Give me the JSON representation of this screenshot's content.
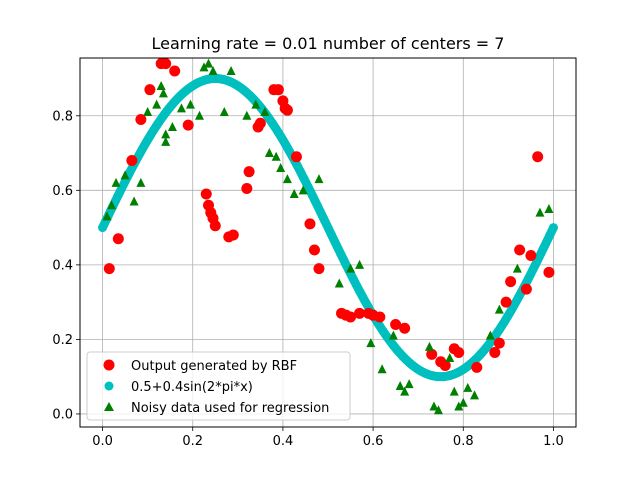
{
  "chart_data": {
    "type": "scatter",
    "title": "Learning rate = 0.01 number of centers = 7",
    "xlabel": "",
    "ylabel": "",
    "xlim": [
      -0.05,
      1.05
    ],
    "ylim": [
      -0.035,
      0.955
    ],
    "x_ticks": [
      0.0,
      0.2,
      0.4,
      0.6,
      0.8,
      1.0
    ],
    "x_tick_labels": [
      "0.0",
      "0.2",
      "0.4",
      "0.6",
      "0.8",
      "1.0"
    ],
    "y_ticks": [
      0.0,
      0.2,
      0.4,
      0.6,
      0.8
    ],
    "y_tick_labels": [
      "0.0",
      "0.2",
      "0.4",
      "0.6",
      "0.8"
    ],
    "grid": true,
    "legend_position": "lower-left",
    "series": [
      {
        "name": "Output generated by RBF",
        "marker": "circle",
        "color": "#ff0000",
        "points": [
          [
            0.015,
            0.39
          ],
          [
            0.035,
            0.47
          ],
          [
            0.065,
            0.68
          ],
          [
            0.085,
            0.79
          ],
          [
            0.105,
            0.87
          ],
          [
            0.13,
            0.94
          ],
          [
            0.14,
            0.94
          ],
          [
            0.16,
            0.92
          ],
          [
            0.19,
            0.775
          ],
          [
            0.23,
            0.59
          ],
          [
            0.235,
            0.56
          ],
          [
            0.24,
            0.54
          ],
          [
            0.245,
            0.525
          ],
          [
            0.25,
            0.505
          ],
          [
            0.28,
            0.475
          ],
          [
            0.29,
            0.48
          ],
          [
            0.32,
            0.605
          ],
          [
            0.325,
            0.65
          ],
          [
            0.345,
            0.77
          ],
          [
            0.35,
            0.78
          ],
          [
            0.38,
            0.87
          ],
          [
            0.39,
            0.87
          ],
          [
            0.4,
            0.84
          ],
          [
            0.405,
            0.82
          ],
          [
            0.41,
            0.815
          ],
          [
            0.43,
            0.69
          ],
          [
            0.46,
            0.51
          ],
          [
            0.47,
            0.44
          ],
          [
            0.48,
            0.39
          ],
          [
            0.53,
            0.27
          ],
          [
            0.54,
            0.265
          ],
          [
            0.55,
            0.26
          ],
          [
            0.57,
            0.27
          ],
          [
            0.59,
            0.27
          ],
          [
            0.6,
            0.265
          ],
          [
            0.615,
            0.26
          ],
          [
            0.65,
            0.24
          ],
          [
            0.67,
            0.23
          ],
          [
            0.73,
            0.16
          ],
          [
            0.75,
            0.14
          ],
          [
            0.76,
            0.13
          ],
          [
            0.78,
            0.175
          ],
          [
            0.79,
            0.165
          ],
          [
            0.83,
            0.125
          ],
          [
            0.87,
            0.165
          ],
          [
            0.88,
            0.19
          ],
          [
            0.895,
            0.3
          ],
          [
            0.905,
            0.355
          ],
          [
            0.925,
            0.44
          ],
          [
            0.94,
            0.335
          ],
          [
            0.95,
            0.425
          ],
          [
            0.965,
            0.69
          ],
          [
            0.99,
            0.38
          ]
        ]
      },
      {
        "name": "0.5+0.4sin(2*pi*x)",
        "marker": "circle",
        "color": "#00bfbf",
        "function": "0.5+0.4sin(2*pi*x)",
        "x_range": [
          0,
          1
        ]
      },
      {
        "name": "Noisy data used for regression",
        "marker": "triangle",
        "color": "#008000",
        "points": [
          [
            0.01,
            0.53
          ],
          [
            0.02,
            0.56
          ],
          [
            0.03,
            0.62
          ],
          [
            0.05,
            0.64
          ],
          [
            0.07,
            0.57
          ],
          [
            0.085,
            0.62
          ],
          [
            0.1,
            0.81
          ],
          [
            0.12,
            0.83
          ],
          [
            0.13,
            0.88
          ],
          [
            0.135,
            0.86
          ],
          [
            0.14,
            0.75
          ],
          [
            0.14,
            0.73
          ],
          [
            0.155,
            0.77
          ],
          [
            0.175,
            0.82
          ],
          [
            0.195,
            0.83
          ],
          [
            0.215,
            0.8
          ],
          [
            0.225,
            0.93
          ],
          [
            0.235,
            0.94
          ],
          [
            0.245,
            0.92
          ],
          [
            0.27,
            0.81
          ],
          [
            0.285,
            0.92
          ],
          [
            0.32,
            0.8
          ],
          [
            0.34,
            0.83
          ],
          [
            0.36,
            0.81
          ],
          [
            0.37,
            0.7
          ],
          [
            0.385,
            0.69
          ],
          [
            0.395,
            0.66
          ],
          [
            0.41,
            0.63
          ],
          [
            0.425,
            0.59
          ],
          [
            0.445,
            0.6
          ],
          [
            0.48,
            0.63
          ],
          [
            0.525,
            0.35
          ],
          [
            0.55,
            0.39
          ],
          [
            0.57,
            0.4
          ],
          [
            0.595,
            0.19
          ],
          [
            0.62,
            0.12
          ],
          [
            0.645,
            0.21
          ],
          [
            0.66,
            0.075
          ],
          [
            0.67,
            0.06
          ],
          [
            0.68,
            0.08
          ],
          [
            0.725,
            0.18
          ],
          [
            0.735,
            0.02
          ],
          [
            0.745,
            0.01
          ],
          [
            0.77,
            0.15
          ],
          [
            0.78,
            0.06
          ],
          [
            0.79,
            0.02
          ],
          [
            0.8,
            0.03
          ],
          [
            0.81,
            0.07
          ],
          [
            0.825,
            0.05
          ],
          [
            0.86,
            0.21
          ],
          [
            0.88,
            0.28
          ],
          [
            0.92,
            0.39
          ],
          [
            0.97,
            0.54
          ],
          [
            0.99,
            0.55
          ]
        ]
      }
    ]
  }
}
